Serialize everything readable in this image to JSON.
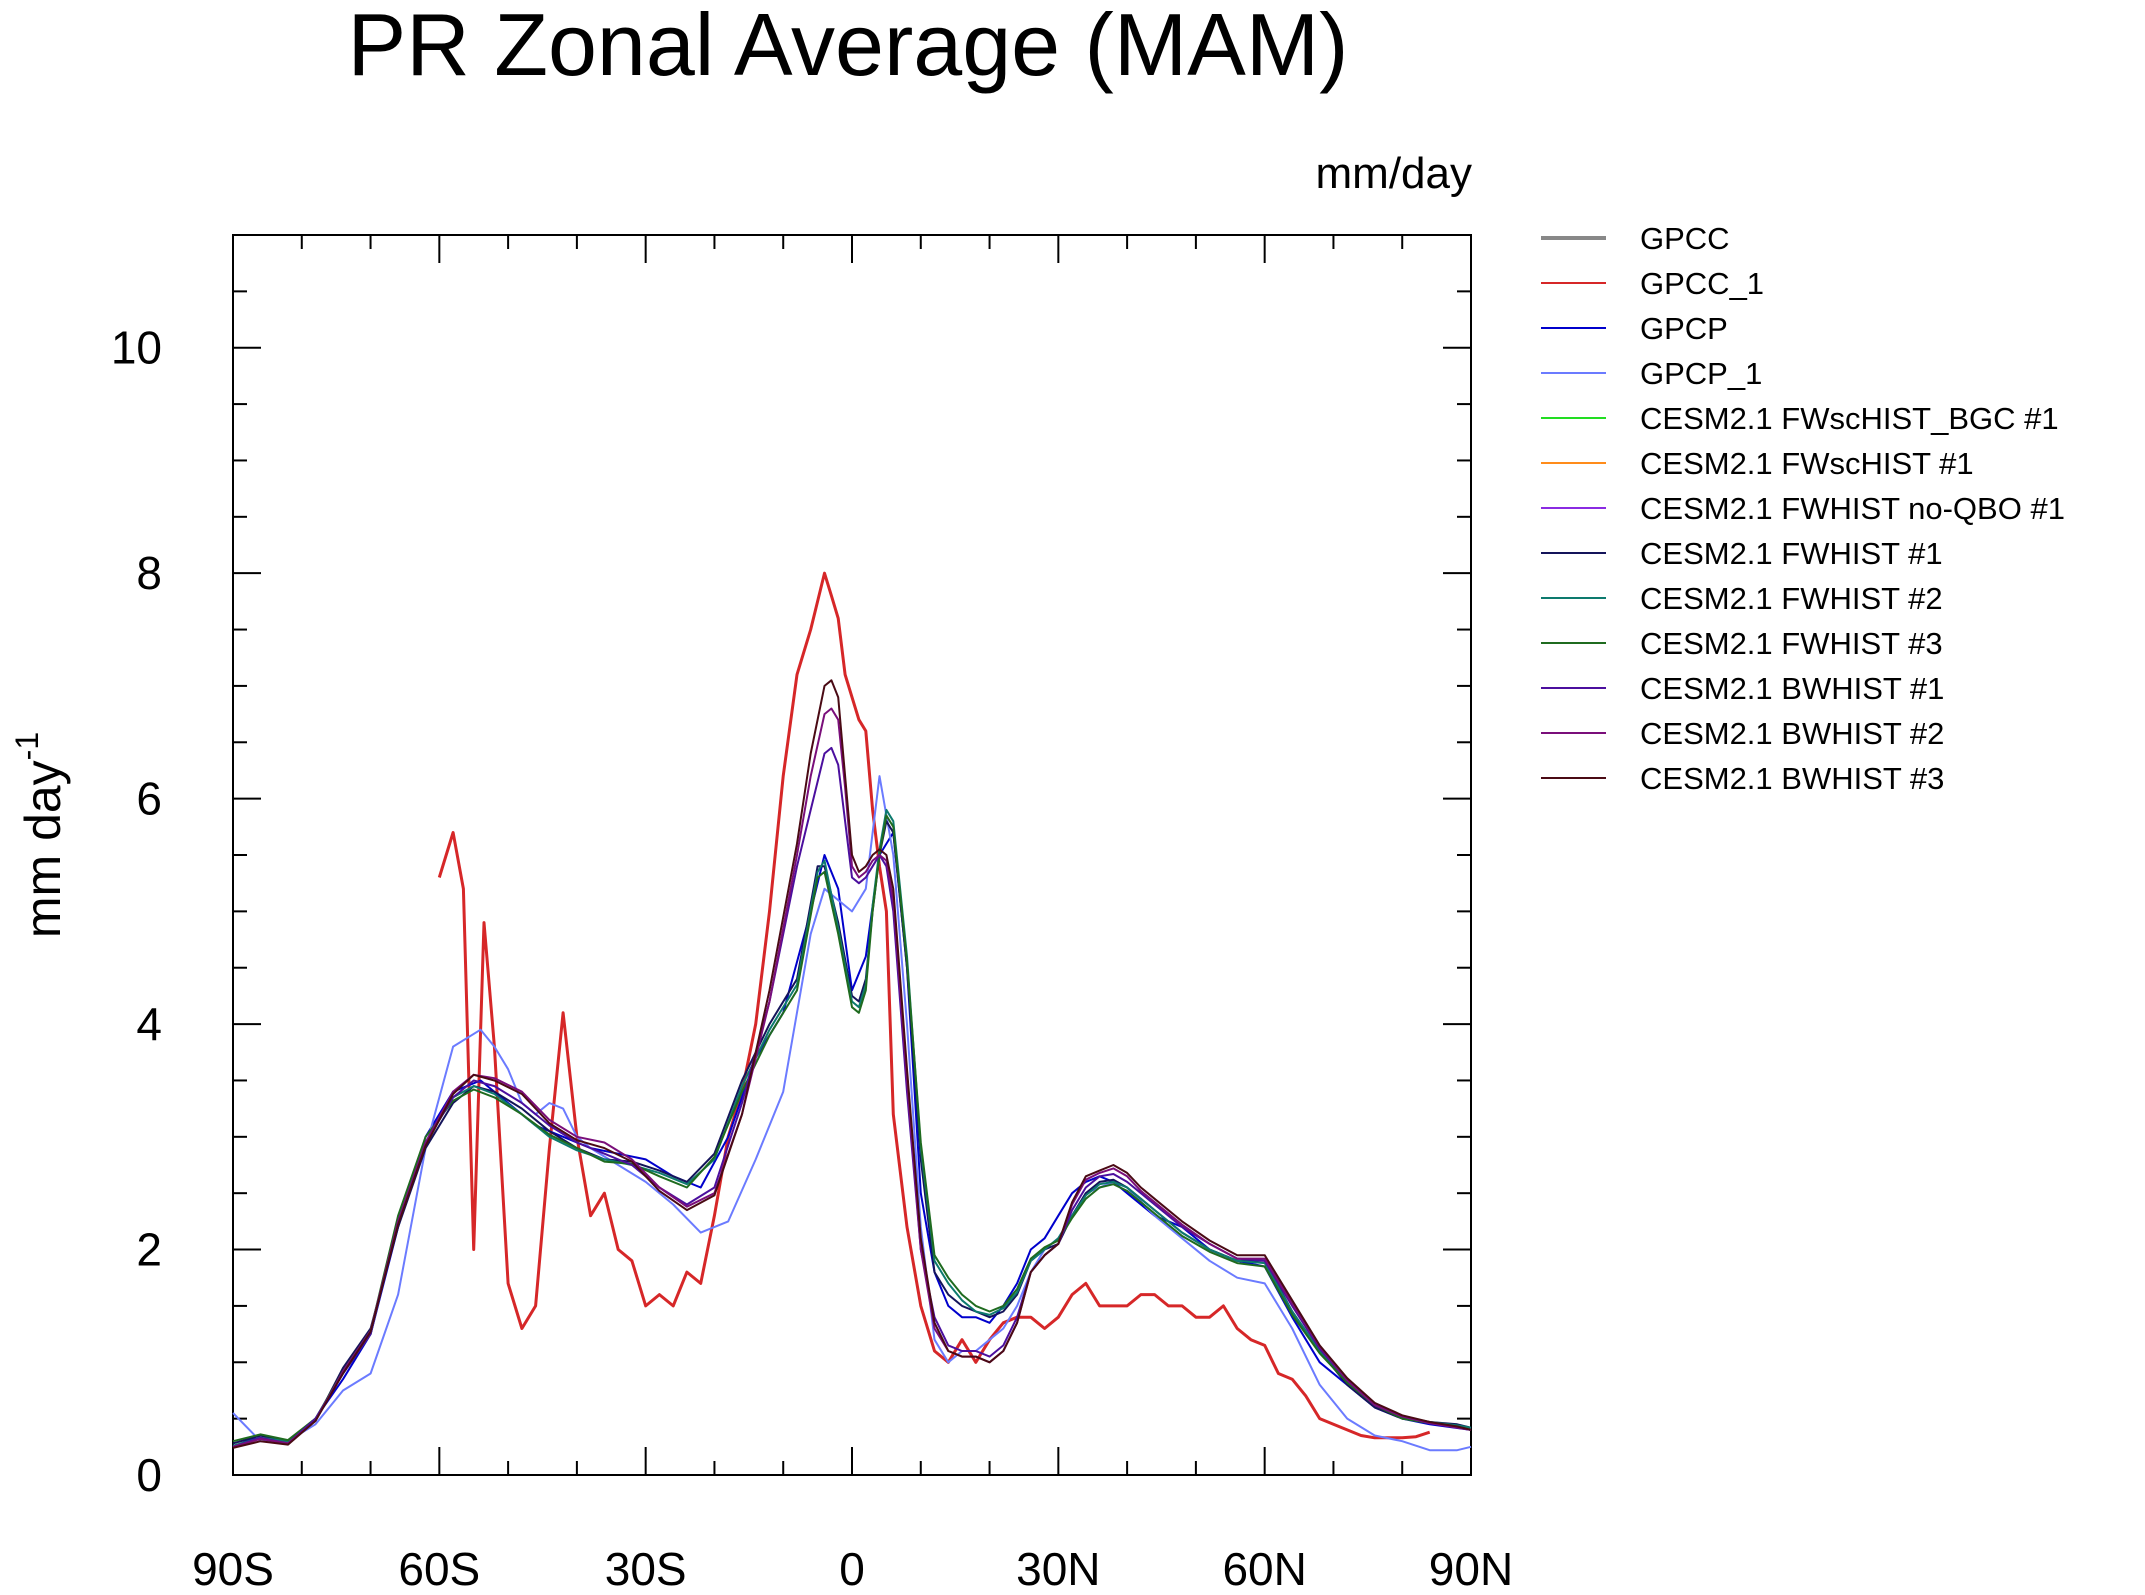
{
  "chart_data": {
    "type": "line",
    "title": "PR Zonal Average (MAM)",
    "units_label": "mm/day",
    "ylabel": "mm day",
    "ylabel_superscript": "-1",
    "xlabel": "",
    "xlim": [
      -90,
      90
    ],
    "ylim": [
      0,
      11
    ],
    "x_ticks": [
      -90,
      -60,
      -30,
      0,
      30,
      60,
      90
    ],
    "x_tick_labels": [
      "90S",
      "60S",
      "30S",
      "0",
      "30N",
      "60N",
      "90N"
    ],
    "y_ticks": [
      0,
      2,
      4,
      6,
      8,
      10
    ],
    "y_tick_labels": [
      "0",
      "2",
      "4",
      "6",
      "8",
      "10"
    ],
    "legend_position": "right",
    "series": [
      {
        "name": "GPCC",
        "color": "#888888",
        "x": [],
        "y": []
      },
      {
        "name": "GPCC_1",
        "color": "#d62728",
        "x": [
          -60,
          -58,
          -56.5,
          -55,
          -53.5,
          -52,
          -50,
          -48,
          -46,
          -44,
          -42,
          -40,
          -38,
          -36,
          -34,
          -32,
          -30,
          -28,
          -26,
          -24,
          -22,
          -20,
          -18,
          -16,
          -14,
          -12,
          -10,
          -8,
          -6,
          -4,
          -3,
          -2,
          -1,
          0,
          1,
          2,
          3,
          4,
          5,
          6,
          8,
          10,
          12,
          14,
          16,
          18,
          20,
          22,
          24,
          26,
          28,
          30,
          32,
          34,
          36,
          38,
          40,
          42,
          44,
          46,
          48,
          50,
          52,
          54,
          56,
          58,
          60,
          62,
          64,
          66,
          68,
          70,
          72,
          74,
          76,
          78,
          80,
          82,
          84
        ],
        "y": [
          5.3,
          5.7,
          5.2,
          2.0,
          4.9,
          3.8,
          1.7,
          1.3,
          1.5,
          2.9,
          4.1,
          3.0,
          2.3,
          2.5,
          2.0,
          1.9,
          1.5,
          1.6,
          1.5,
          1.8,
          1.7,
          2.3,
          3.0,
          3.4,
          4.0,
          5.0,
          6.2,
          7.1,
          7.5,
          8.0,
          7.8,
          7.6,
          7.1,
          6.9,
          6.7,
          6.6,
          5.9,
          5.4,
          5.0,
          3.2,
          2.2,
          1.5,
          1.1,
          1.0,
          1.2,
          1.0,
          1.2,
          1.35,
          1.4,
          1.4,
          1.3,
          1.4,
          1.6,
          1.7,
          1.5,
          1.5,
          1.5,
          1.6,
          1.6,
          1.5,
          1.5,
          1.4,
          1.4,
          1.5,
          1.3,
          1.2,
          1.15,
          0.9,
          0.85,
          0.7,
          0.5,
          0.45,
          0.4,
          0.35,
          0.33,
          0.33,
          0.33,
          0.34,
          0.38
        ]
      },
      {
        "name": "GPCP",
        "color": "#0000cc",
        "x": [
          -90,
          -86,
          -82,
          -78,
          -74,
          -70,
          -66,
          -62,
          -58,
          -54,
          -50,
          -46,
          -42,
          -38,
          -34,
          -30,
          -26,
          -22,
          -18,
          -14,
          -10,
          -6,
          -4,
          -2,
          0,
          2,
          4,
          6,
          8,
          10,
          12,
          14,
          16,
          18,
          20,
          22,
          24,
          26,
          28,
          30,
          32,
          34,
          36,
          38,
          40,
          42,
          44,
          48,
          52,
          56,
          60,
          64,
          68,
          72,
          76,
          80,
          84,
          90
        ],
        "y": [
          0.25,
          0.35,
          0.3,
          0.5,
          0.85,
          1.25,
          2.2,
          3.0,
          3.4,
          3.5,
          3.3,
          3.1,
          3.0,
          2.9,
          2.85,
          2.8,
          2.65,
          2.55,
          3.0,
          3.7,
          4.1,
          5.0,
          5.5,
          5.2,
          4.3,
          4.6,
          5.5,
          5.7,
          4.5,
          2.5,
          1.8,
          1.5,
          1.4,
          1.4,
          1.35,
          1.5,
          1.7,
          2.0,
          2.1,
          2.3,
          2.5,
          2.6,
          2.65,
          2.6,
          2.5,
          2.4,
          2.3,
          2.2,
          2.0,
          1.9,
          1.85,
          1.4,
          1.0,
          0.8,
          0.6,
          0.5,
          0.45,
          0.4
        ]
      },
      {
        "name": "GPCP_1",
        "color": "#6b7bff",
        "x": [
          -90,
          -86,
          -82,
          -78,
          -74,
          -70,
          -66,
          -62,
          -58,
          -54,
          -52,
          -50,
          -48,
          -46,
          -44,
          -42,
          -40,
          -38,
          -34,
          -30,
          -26,
          -22,
          -18,
          -14,
          -10,
          -6,
          -4,
          -2,
          0,
          2,
          4,
          6,
          8,
          10,
          12,
          14,
          16,
          18,
          20,
          22,
          24,
          26,
          28,
          30,
          34,
          38,
          40,
          44,
          48,
          52,
          56,
          60,
          64,
          68,
          72,
          76,
          80,
          84,
          86,
          88,
          90
        ],
        "y": [
          0.55,
          0.3,
          0.3,
          0.45,
          0.75,
          0.9,
          1.6,
          2.9,
          3.8,
          3.95,
          3.8,
          3.6,
          3.3,
          3.2,
          3.3,
          3.25,
          3.0,
          2.9,
          2.75,
          2.6,
          2.4,
          2.15,
          2.25,
          2.8,
          3.4,
          4.8,
          5.2,
          5.1,
          5.0,
          5.2,
          6.2,
          5.5,
          4.0,
          2.2,
          1.2,
          1.0,
          1.1,
          1.1,
          1.2,
          1.3,
          1.5,
          1.8,
          2.0,
          2.1,
          2.5,
          2.6,
          2.55,
          2.3,
          2.1,
          1.9,
          1.75,
          1.7,
          1.3,
          0.8,
          0.5,
          0.35,
          0.3,
          0.22,
          0.22,
          0.22,
          0.25
        ]
      },
      {
        "name": "CESM2.1 FWscHIST_BGC #1",
        "color": "#22dd22",
        "x": [],
        "y": []
      },
      {
        "name": "CESM2.1 FWscHIST #1",
        "color": "#ff8c1a",
        "x": [],
        "y": []
      },
      {
        "name": "CESM2.1 FWHIST no-QBO #1",
        "color": "#8a2be2",
        "x": [],
        "y": []
      },
      {
        "name": "CESM2.1 FWHIST #1",
        "color": "#14145a",
        "x": [
          -90,
          -86,
          -82,
          -78,
          -74,
          -70,
          -66,
          -62,
          -58,
          -55,
          -52,
          -48,
          -44,
          -40,
          -36,
          -32,
          -28,
          -24,
          -20,
          -16,
          -12,
          -8,
          -5,
          -4,
          -2,
          0,
          1,
          2,
          3,
          4,
          5,
          6,
          8,
          10,
          12,
          14,
          16,
          18,
          20,
          22,
          24,
          26,
          28,
          30,
          32,
          34,
          36,
          38,
          40,
          42,
          44,
          48,
          52,
          56,
          60,
          64,
          68,
          72,
          76,
          80,
          84,
          88,
          90
        ],
        "y": [
          0.28,
          0.35,
          0.3,
          0.48,
          0.95,
          1.3,
          2.2,
          2.9,
          3.3,
          3.45,
          3.4,
          3.25,
          3.05,
          2.9,
          2.8,
          2.78,
          2.7,
          2.6,
          2.85,
          3.5,
          4.0,
          4.4,
          5.4,
          5.4,
          4.9,
          4.25,
          4.2,
          4.4,
          5.0,
          5.5,
          5.8,
          5.7,
          4.5,
          2.8,
          1.8,
          1.6,
          1.5,
          1.45,
          1.4,
          1.45,
          1.6,
          1.9,
          2.0,
          2.05,
          2.3,
          2.5,
          2.6,
          2.62,
          2.55,
          2.45,
          2.35,
          2.15,
          2.0,
          1.9,
          1.9,
          1.45,
          1.1,
          0.8,
          0.6,
          0.5,
          0.47,
          0.45,
          0.42
        ]
      },
      {
        "name": "CESM2.1 FWHIST #2",
        "color": "#0d7a6e",
        "x": [
          -90,
          -86,
          -82,
          -78,
          -74,
          -70,
          -66,
          -62,
          -58,
          -55,
          -52,
          -48,
          -44,
          -40,
          -36,
          -32,
          -28,
          -24,
          -20,
          -16,
          -12,
          -8,
          -5,
          -4,
          -2,
          0,
          1,
          2,
          3,
          4,
          5,
          6,
          8,
          10,
          12,
          14,
          16,
          18,
          20,
          22,
          24,
          26,
          28,
          30,
          32,
          34,
          36,
          38,
          40,
          42,
          44,
          48,
          52,
          56,
          60,
          64,
          68,
          72,
          76,
          80,
          84,
          88,
          90
        ],
        "y": [
          0.26,
          0.33,
          0.3,
          0.5,
          0.9,
          1.25,
          2.25,
          2.95,
          3.35,
          3.45,
          3.38,
          3.2,
          3.0,
          2.88,
          2.8,
          2.75,
          2.68,
          2.58,
          2.8,
          3.45,
          3.95,
          4.35,
          5.35,
          5.45,
          4.85,
          4.2,
          4.15,
          4.35,
          5.05,
          5.55,
          5.9,
          5.8,
          4.6,
          2.9,
          1.9,
          1.7,
          1.55,
          1.45,
          1.42,
          1.48,
          1.62,
          1.9,
          2.0,
          2.1,
          2.3,
          2.48,
          2.58,
          2.6,
          2.55,
          2.45,
          2.35,
          2.15,
          2.0,
          1.9,
          1.88,
          1.45,
          1.1,
          0.82,
          0.62,
          0.52,
          0.47,
          0.44,
          0.42
        ]
      },
      {
        "name": "CESM2.1 FWHIST #3",
        "color": "#1f6b1f",
        "x": [
          -90,
          -86,
          -82,
          -78,
          -74,
          -70,
          -66,
          -62,
          -58,
          -55,
          -52,
          -48,
          -44,
          -40,
          -36,
          -32,
          -28,
          -24,
          -20,
          -16,
          -12,
          -8,
          -5,
          -4,
          -2,
          0,
          1,
          2,
          3,
          4,
          5,
          6,
          8,
          10,
          12,
          14,
          16,
          18,
          20,
          22,
          24,
          26,
          28,
          30,
          32,
          34,
          36,
          38,
          40,
          42,
          44,
          48,
          52,
          56,
          60,
          64,
          68,
          72,
          76,
          80,
          84,
          88,
          90
        ],
        "y": [
          0.3,
          0.36,
          0.31,
          0.5,
          0.92,
          1.28,
          2.3,
          3.0,
          3.32,
          3.42,
          3.35,
          3.2,
          3.02,
          2.9,
          2.78,
          2.76,
          2.65,
          2.55,
          2.82,
          3.4,
          3.9,
          4.3,
          5.3,
          5.35,
          4.8,
          4.15,
          4.1,
          4.3,
          5.0,
          5.5,
          5.85,
          5.75,
          4.55,
          2.95,
          1.95,
          1.75,
          1.6,
          1.5,
          1.45,
          1.5,
          1.65,
          1.92,
          2.02,
          2.08,
          2.28,
          2.45,
          2.55,
          2.58,
          2.52,
          2.42,
          2.32,
          2.12,
          1.98,
          1.88,
          1.85,
          1.42,
          1.08,
          0.82,
          0.62,
          0.5,
          0.46,
          0.43,
          0.4
        ]
      },
      {
        "name": "CESM2.1 BWHIST #1",
        "color": "#4b0f9e",
        "x": [
          -90,
          -86,
          -82,
          -78,
          -74,
          -70,
          -66,
          -62,
          -58,
          -55,
          -52,
          -48,
          -44,
          -40,
          -36,
          -32,
          -28,
          -24,
          -20,
          -16,
          -12,
          -8,
          -6,
          -4,
          -3,
          -2,
          -1,
          0,
          1,
          2,
          3,
          4,
          5,
          6,
          8,
          10,
          12,
          14,
          16,
          18,
          20,
          22,
          24,
          26,
          28,
          30,
          32,
          34,
          36,
          38,
          40,
          42,
          44,
          48,
          52,
          56,
          60,
          64,
          68,
          72,
          76,
          80,
          84,
          88,
          90
        ],
        "y": [
          0.25,
          0.33,
          0.28,
          0.5,
          0.9,
          1.25,
          2.25,
          2.95,
          3.35,
          3.5,
          3.45,
          3.3,
          3.1,
          2.95,
          2.85,
          2.75,
          2.55,
          2.4,
          2.55,
          3.3,
          4.2,
          5.4,
          5.9,
          6.4,
          6.45,
          6.3,
          5.8,
          5.3,
          5.25,
          5.3,
          5.4,
          5.5,
          5.4,
          5.0,
          3.4,
          2.0,
          1.4,
          1.15,
          1.1,
          1.1,
          1.05,
          1.15,
          1.4,
          1.8,
          1.95,
          2.05,
          2.35,
          2.55,
          2.65,
          2.67,
          2.6,
          2.5,
          2.4,
          2.2,
          2.05,
          1.92,
          1.9,
          1.5,
          1.12,
          0.84,
          0.62,
          0.52,
          0.46,
          0.42,
          0.4
        ]
      },
      {
        "name": "CESM2.1 BWHIST #2",
        "color": "#7a0e7a",
        "x": [
          -90,
          -86,
          -82,
          -78,
          -74,
          -70,
          -66,
          -62,
          -58,
          -55,
          -52,
          -48,
          -44,
          -40,
          -36,
          -32,
          -28,
          -24,
          -20,
          -16,
          -12,
          -8,
          -6,
          -4,
          -3,
          -2,
          -1,
          0,
          1,
          2,
          3,
          4,
          5,
          6,
          8,
          10,
          12,
          14,
          16,
          18,
          20,
          22,
          24,
          26,
          28,
          30,
          32,
          34,
          36,
          38,
          40,
          42,
          44,
          48,
          52,
          56,
          60,
          64,
          68,
          72,
          76,
          80,
          84,
          88,
          90
        ],
        "y": [
          0.25,
          0.32,
          0.28,
          0.48,
          0.92,
          1.28,
          2.25,
          2.95,
          3.4,
          3.55,
          3.52,
          3.4,
          3.15,
          3.0,
          2.95,
          2.8,
          2.55,
          2.38,
          2.5,
          3.2,
          4.2,
          5.5,
          6.2,
          6.75,
          6.8,
          6.7,
          6.1,
          5.4,
          5.3,
          5.35,
          5.45,
          5.5,
          5.45,
          5.1,
          3.5,
          2.0,
          1.3,
          1.1,
          1.05,
          1.05,
          1.0,
          1.1,
          1.35,
          1.8,
          1.95,
          2.05,
          2.4,
          2.62,
          2.68,
          2.72,
          2.65,
          2.52,
          2.42,
          2.22,
          2.05,
          1.92,
          1.92,
          1.52,
          1.14,
          0.84,
          0.62,
          0.52,
          0.46,
          0.42,
          0.4
        ]
      },
      {
        "name": "CESM2.1 BWHIST #3",
        "color": "#4a0a14",
        "x": [
          -90,
          -86,
          -82,
          -78,
          -74,
          -70,
          -66,
          -62,
          -58,
          -55,
          -52,
          -48,
          -44,
          -40,
          -36,
          -32,
          -28,
          -24,
          -20,
          -16,
          -12,
          -8,
          -6,
          -4,
          -3,
          -2,
          -1,
          0,
          1,
          2,
          3,
          4,
          5,
          6,
          8,
          10,
          12,
          14,
          16,
          18,
          20,
          22,
          24,
          26,
          28,
          30,
          32,
          34,
          36,
          38,
          40,
          42,
          44,
          48,
          52,
          56,
          60,
          64,
          68,
          72,
          76,
          80,
          84,
          88,
          90
        ],
        "y": [
          0.24,
          0.3,
          0.27,
          0.48,
          0.9,
          1.27,
          2.22,
          2.92,
          3.38,
          3.55,
          3.5,
          3.38,
          3.12,
          2.97,
          2.9,
          2.78,
          2.52,
          2.35,
          2.48,
          3.2,
          4.3,
          5.6,
          6.4,
          7.0,
          7.05,
          6.9,
          6.2,
          5.5,
          5.35,
          5.4,
          5.5,
          5.55,
          5.5,
          5.2,
          3.6,
          2.1,
          1.35,
          1.1,
          1.05,
          1.05,
          1.0,
          1.1,
          1.35,
          1.8,
          1.95,
          2.05,
          2.42,
          2.65,
          2.7,
          2.75,
          2.68,
          2.55,
          2.45,
          2.25,
          2.08,
          1.95,
          1.95,
          1.55,
          1.15,
          0.86,
          0.64,
          0.53,
          0.47,
          0.43,
          0.4
        ]
      }
    ]
  }
}
